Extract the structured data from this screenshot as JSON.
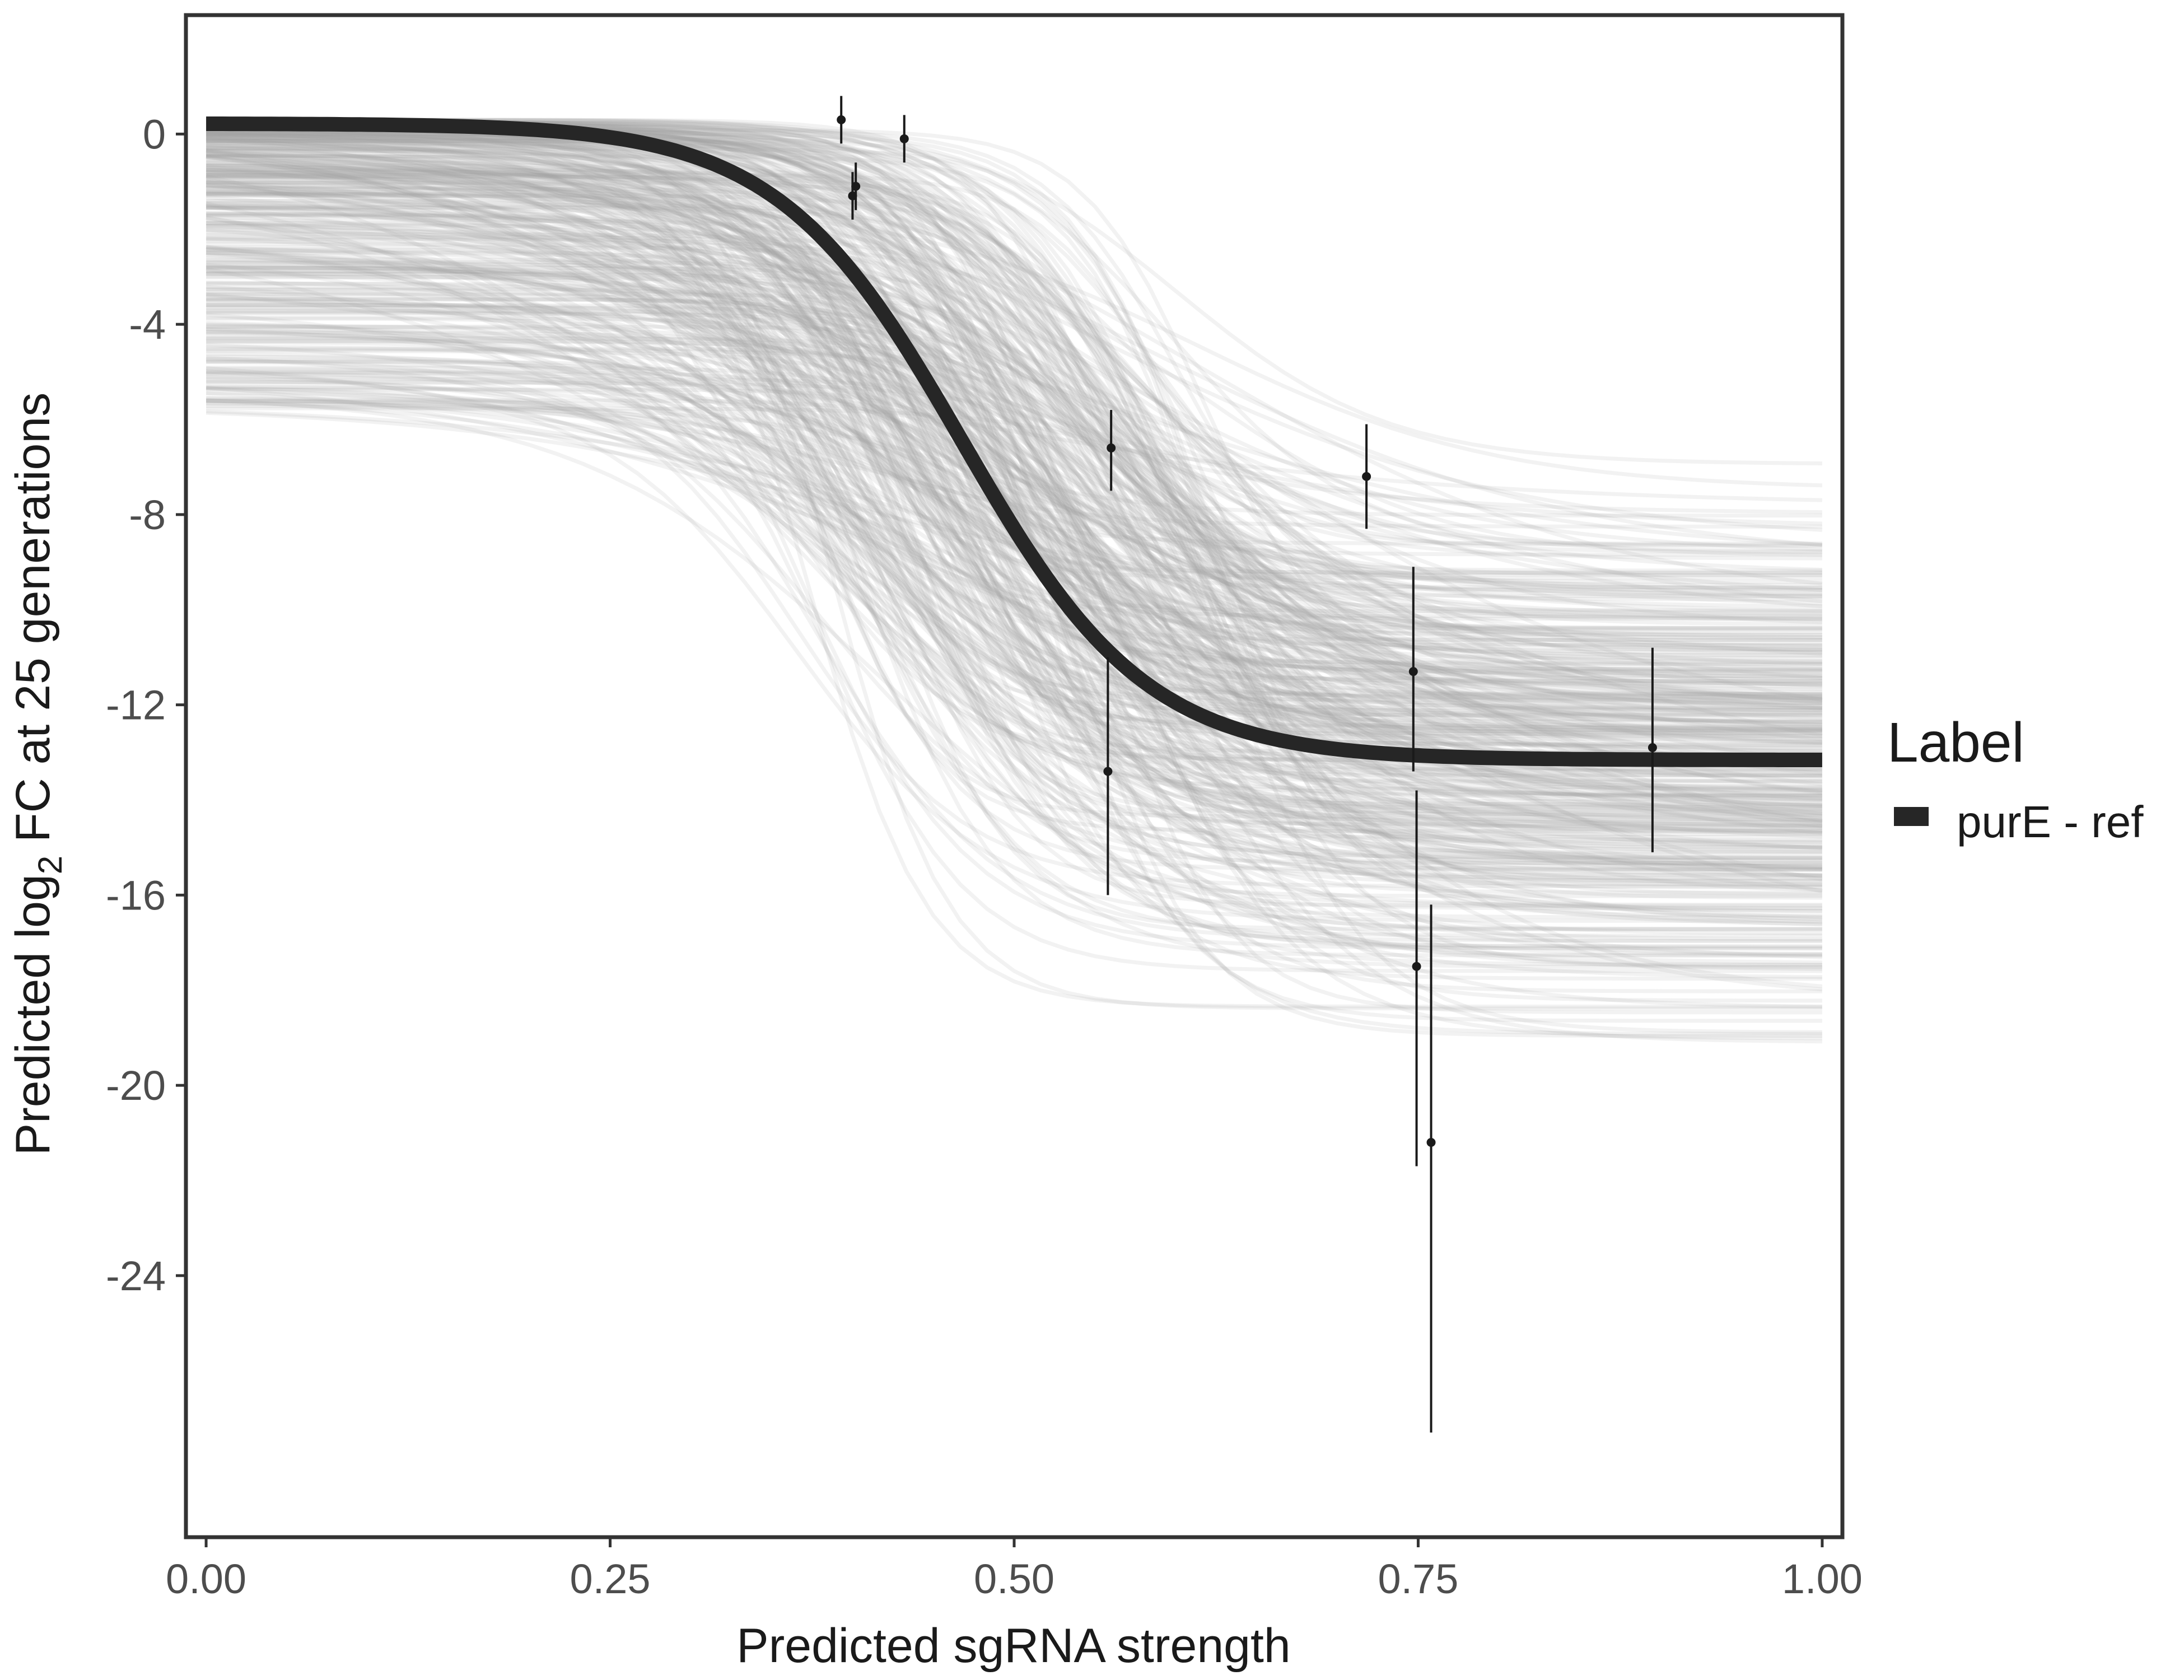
{
  "chart_data": {
    "type": "line",
    "xlabel": "Predicted sgRNA strength",
    "ylabel_parts": {
      "before": "Predicted  log",
      "subscript": "2",
      "after": " FC at 25 generations"
    },
    "xlim": [
      -0.0125,
      1.0125
    ],
    "ylim": [
      -29.5,
      2.5
    ],
    "x_ticks": [
      {
        "value": 0.0,
        "label": "0.00"
      },
      {
        "value": 0.25,
        "label": "0.25"
      },
      {
        "value": 0.5,
        "label": "0.50"
      },
      {
        "value": 0.75,
        "label": "0.75"
      },
      {
        "value": 1.0,
        "label": "1.00"
      }
    ],
    "y_ticks": [
      {
        "value": 0,
        "label": "0"
      },
      {
        "value": -4,
        "label": "-4"
      },
      {
        "value": -8,
        "label": "-8"
      },
      {
        "value": -12,
        "label": "-12"
      },
      {
        "value": -16,
        "label": "-16"
      },
      {
        "value": -20,
        "label": "-20"
      },
      {
        "value": -24,
        "label": "-24"
      }
    ],
    "grid": false,
    "legend": {
      "title": "Label",
      "position": "right",
      "entries": [
        {
          "name": "purE - ref",
          "color": "#262626"
        }
      ]
    },
    "fit_curve": {
      "name": "purE - ref",
      "color": "#262626",
      "x": [
        0.0,
        0.05,
        0.1,
        0.15,
        0.2,
        0.25,
        0.3,
        0.35,
        0.4,
        0.45,
        0.5,
        0.55,
        0.6,
        0.65,
        0.7,
        0.75,
        0.8,
        0.85,
        0.9,
        0.95,
        1.0
      ],
      "y": [
        0.2,
        0.2,
        0.2,
        0.15,
        0.1,
        -0.1,
        -0.5,
        -1.5,
        -3.0,
        -5.0,
        -7.9,
        -10.6,
        -12.2,
        -12.8,
        -13.05,
        -13.12,
        -13.15,
        -13.16,
        -13.16,
        -13.16,
        -13.16
      ]
    },
    "posterior_draws": {
      "color": "#a6a6a6",
      "description_count": 400,
      "y_start_range": [
        -5.8,
        0.3
      ],
      "y_end_range": [
        -21.2,
        -4.8
      ],
      "midpoint_range": [
        0.36,
        0.62
      ]
    },
    "points": [
      {
        "x": 0.393,
        "y": 0.3,
        "ymin": -0.2,
        "ymax": 0.8
      },
      {
        "x": 0.402,
        "y": -1.1,
        "ymin": -1.6,
        "ymax": -0.6
      },
      {
        "x": 0.4,
        "y": -1.3,
        "ymin": -1.8,
        "ymax": -0.8
      },
      {
        "x": 0.432,
        "y": -0.1,
        "ymin": -0.6,
        "ymax": 0.4
      },
      {
        "x": 0.56,
        "y": -6.6,
        "ymin": -7.5,
        "ymax": -5.8
      },
      {
        "x": 0.558,
        "y": -13.4,
        "ymin": -16.0,
        "ymax": -11.0
      },
      {
        "x": 0.718,
        "y": -7.2,
        "ymin": -8.3,
        "ymax": -6.1
      },
      {
        "x": 0.747,
        "y": -11.3,
        "ymin": -13.4,
        "ymax": -9.1
      },
      {
        "x": 0.749,
        "y": -17.5,
        "ymin": -21.7,
        "ymax": -13.8
      },
      {
        "x": 0.758,
        "y": -21.2,
        "ymin": -27.3,
        "ymax": -16.2
      },
      {
        "x": 0.895,
        "y": -12.9,
        "ymin": -15.1,
        "ymax": -10.8
      }
    ]
  }
}
